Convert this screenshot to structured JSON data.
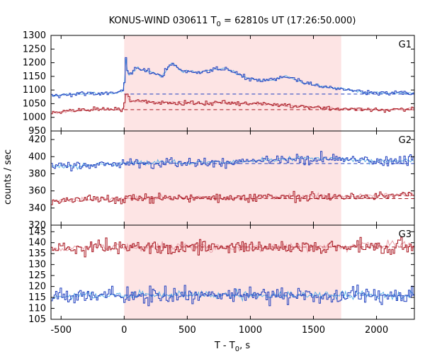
{
  "chart_data": {
    "type": "line",
    "title": "KONUS-WIND 030611 T",
    "title_sub": "0",
    "title_rest": " = 62810s UT (17:26:50.000)",
    "xlabel": "T - T",
    "xlabel_sub": "0",
    "xlabel_rest": ", s",
    "ylabel": "counts / sec",
    "xlim": [
      -580,
      2300
    ],
    "x_ticks": [
      -500,
      0,
      500,
      1000,
      1500,
      2000
    ],
    "x_tick_labels": [
      "-500",
      "0",
      "500",
      "1000",
      "1500",
      "2000"
    ],
    "shaded_interval": [
      0,
      1720
    ],
    "colors": {
      "shade": "#fde4e4",
      "blue": "#1f3fbf",
      "light_blue": "#5aaee6",
      "red": "#a8141e",
      "light_red": "#e8a0a8"
    },
    "panels": [
      {
        "name": "G1",
        "ylim": [
          950,
          1300
        ],
        "y_ticks": [
          950,
          1000,
          1050,
          1100,
          1150,
          1200,
          1250,
          1300
        ],
        "y_tick_labels": [
          "950",
          "1000",
          "1050",
          "1100",
          "1150",
          "1200",
          "1250",
          "1300"
        ],
        "blue_background": 1085,
        "red_background": 1028,
        "blue_points": [
          [
            -580,
            1078
          ],
          [
            -400,
            1085
          ],
          [
            -200,
            1088
          ],
          [
            -50,
            1090
          ],
          [
            0,
            1100
          ],
          [
            10,
            1230
          ],
          [
            30,
            1150
          ],
          [
            100,
            1180
          ],
          [
            200,
            1170
          ],
          [
            300,
            1150
          ],
          [
            380,
            1200
          ],
          [
            450,
            1170
          ],
          [
            600,
            1165
          ],
          [
            700,
            1175
          ],
          [
            800,
            1178
          ],
          [
            900,
            1160
          ],
          [
            1000,
            1140
          ],
          [
            1100,
            1135
          ],
          [
            1200,
            1140
          ],
          [
            1300,
            1150
          ],
          [
            1400,
            1130
          ],
          [
            1500,
            1120
          ],
          [
            1600,
            1110
          ],
          [
            1720,
            1105
          ],
          [
            1900,
            1090
          ],
          [
            2100,
            1088
          ],
          [
            2300,
            1090
          ]
        ],
        "red_points": [
          [
            -580,
            1015
          ],
          [
            -400,
            1025
          ],
          [
            -200,
            1030
          ],
          [
            -50,
            1028
          ],
          [
            0,
            1030
          ],
          [
            10,
            1090
          ],
          [
            50,
            1060
          ],
          [
            200,
            1055
          ],
          [
            400,
            1055
          ],
          [
            600,
            1050
          ],
          [
            800,
            1055
          ],
          [
            1000,
            1050
          ],
          [
            1200,
            1045
          ],
          [
            1400,
            1040
          ],
          [
            1600,
            1035
          ],
          [
            1720,
            1030
          ],
          [
            2000,
            1028
          ],
          [
            2300,
            1030
          ]
        ]
      },
      {
        "name": "G2",
        "ylim": [
          320,
          430
        ],
        "y_ticks": [
          320,
          340,
          360,
          380,
          400,
          420
        ],
        "y_tick_labels": [
          "320",
          "340",
          "360",
          "380",
          "400",
          "420"
        ],
        "blue_background": 392,
        "red_background": 351,
        "blue_points": [
          [
            -580,
            388
          ],
          [
            -300,
            390
          ],
          [
            0,
            392
          ],
          [
            300,
            394
          ],
          [
            600,
            393
          ],
          [
            900,
            394
          ],
          [
            1200,
            396
          ],
          [
            1500,
            398
          ],
          [
            1720,
            397
          ],
          [
            2000,
            395
          ],
          [
            2300,
            396
          ]
        ],
        "red_points": [
          [
            -580,
            348
          ],
          [
            -300,
            350
          ],
          [
            0,
            351
          ],
          [
            300,
            352
          ],
          [
            600,
            352
          ],
          [
            900,
            352
          ],
          [
            1200,
            353
          ],
          [
            1500,
            354
          ],
          [
            1720,
            353
          ],
          [
            2000,
            355
          ],
          [
            2300,
            356
          ]
        ]
      },
      {
        "name": "G3",
        "ylim": [
          105,
          148
        ],
        "y_ticks": [
          105,
          110,
          115,
          120,
          125,
          130,
          135,
          140,
          145
        ],
        "y_tick_labels": [
          "105",
          "110",
          "115",
          "120",
          "125",
          "130",
          "135",
          "140",
          "145"
        ],
        "blue_background": 116,
        "red_background": 138,
        "blue_points": [
          [
            -580,
            115
          ],
          [
            -300,
            116
          ],
          [
            0,
            116
          ],
          [
            300,
            116
          ],
          [
            600,
            116
          ],
          [
            900,
            116
          ],
          [
            1200,
            116
          ],
          [
            1500,
            116
          ],
          [
            1720,
            116
          ],
          [
            2000,
            116
          ],
          [
            2300,
            116
          ]
        ],
        "red_points": [
          [
            -580,
            137
          ],
          [
            -300,
            138
          ],
          [
            0,
            138
          ],
          [
            300,
            138
          ],
          [
            600,
            138
          ],
          [
            900,
            138
          ],
          [
            1200,
            138
          ],
          [
            1500,
            138
          ],
          [
            1720,
            138
          ],
          [
            2000,
            139
          ],
          [
            2300,
            139
          ]
        ]
      }
    ]
  }
}
